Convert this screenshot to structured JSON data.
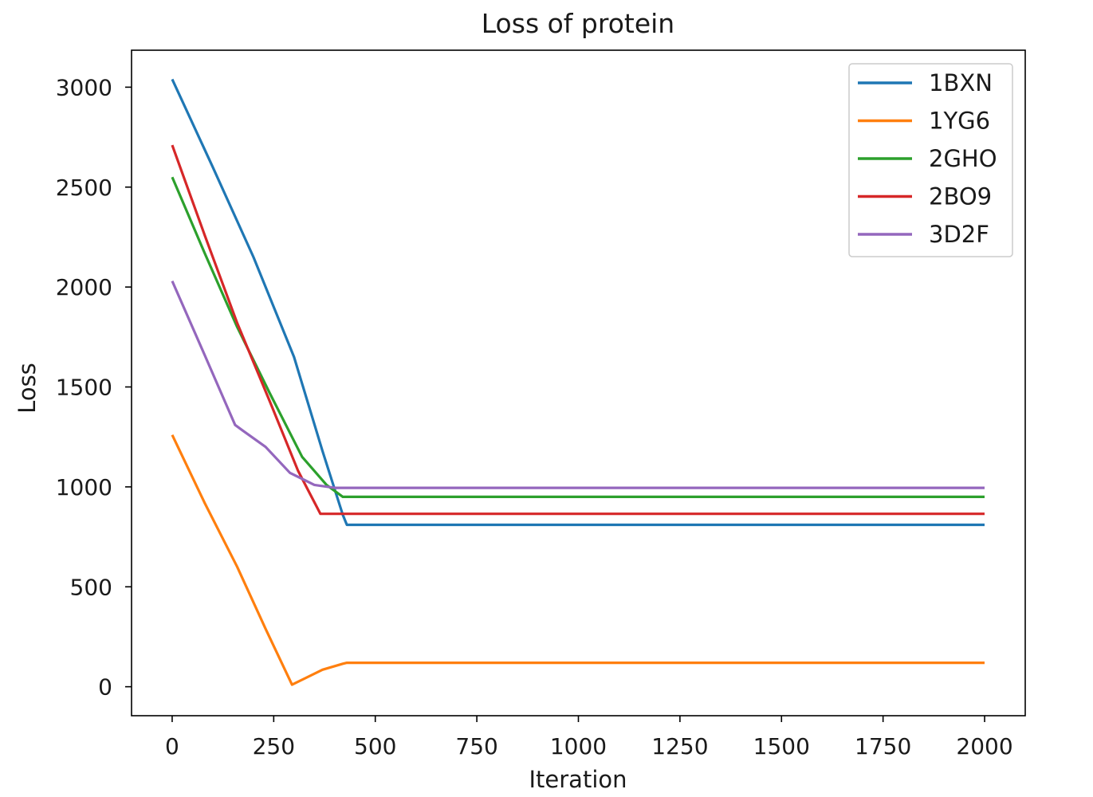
{
  "chart_data": {
    "type": "line",
    "title": "Loss of protein",
    "xlabel": "Iteration",
    "ylabel": "Loss",
    "xlim": [
      -100,
      2100
    ],
    "ylim": [
      -145,
      3185
    ],
    "xticks": [
      0,
      250,
      500,
      750,
      1000,
      1250,
      1500,
      1750,
      2000
    ],
    "yticks": [
      0,
      500,
      1000,
      1500,
      2000,
      2500,
      3000
    ],
    "grid": false,
    "legend_position": "top-right",
    "series": [
      {
        "name": "1BXN",
        "color": "#1f77b4",
        "x": [
          0,
          100,
          200,
          300,
          370,
          420,
          430,
          2000
        ],
        "y": [
          3040,
          2600,
          2150,
          1650,
          1180,
          860,
          810,
          810
        ]
      },
      {
        "name": "1YG6",
        "color": "#ff7f0e",
        "x": [
          0,
          80,
          160,
          230,
          295,
          370,
          420,
          430,
          2000
        ],
        "y": [
          1260,
          920,
          600,
          290,
          10,
          85,
          115,
          120,
          120
        ]
      },
      {
        "name": "2GHO",
        "color": "#2ca02c",
        "x": [
          0,
          80,
          160,
          240,
          320,
          380,
          420,
          2000
        ],
        "y": [
          2550,
          2170,
          1800,
          1470,
          1150,
          1010,
          950,
          950
        ]
      },
      {
        "name": "2BO9",
        "color": "#d62728",
        "x": [
          0,
          80,
          160,
          240,
          310,
          365,
          2000
        ],
        "y": [
          2710,
          2260,
          1820,
          1430,
          1080,
          865,
          865
        ]
      },
      {
        "name": "3D2F",
        "color": "#9467bd",
        "x": [
          0,
          80,
          155,
          175,
          230,
          290,
          350,
          400,
          2000
        ],
        "y": [
          2030,
          1660,
          1310,
          1280,
          1200,
          1070,
          1010,
          995,
          995
        ]
      }
    ]
  }
}
